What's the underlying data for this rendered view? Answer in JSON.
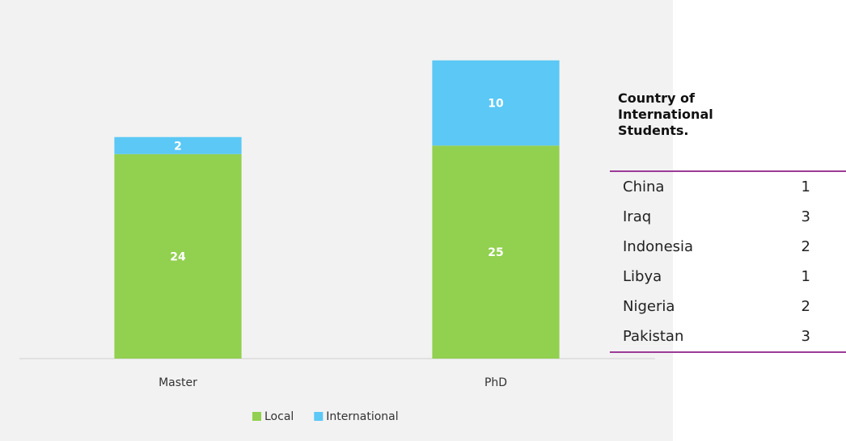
{
  "chart_data": {
    "type": "bar",
    "stacked": true,
    "categories": [
      "Master",
      "PhD"
    ],
    "series": [
      {
        "name": "Local",
        "color": "#92d050",
        "values": [
          24,
          25
        ]
      },
      {
        "name": "International",
        "color": "#5bc8f5",
        "values": [
          2,
          10
        ]
      }
    ],
    "ylim": [
      0,
      40
    ]
  },
  "table": {
    "title": "Country of International Students.",
    "rows": [
      [
        "China",
        1
      ],
      [
        "Iraq",
        3
      ],
      [
        "Indonesia",
        2
      ],
      [
        "Libya",
        1
      ],
      [
        "Nigeria",
        2
      ],
      [
        "Pakistan",
        3
      ]
    ]
  }
}
